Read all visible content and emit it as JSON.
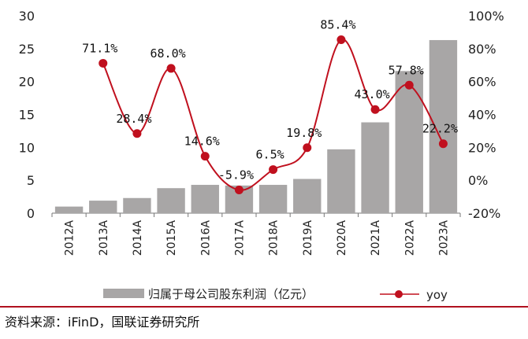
{
  "chart_data": {
    "type": "bar+line",
    "categories": [
      "2012A",
      "2013A",
      "2014A",
      "2015A",
      "2016A",
      "2017A",
      "2018A",
      "2019A",
      "2020A",
      "2021A",
      "2022A",
      "2023A"
    ],
    "series": [
      {
        "name": "归属于母公司股东利润（亿元）",
        "type": "bar",
        "axis": "left",
        "color": "#a8a6a6",
        "values": [
          1.0,
          1.9,
          2.3,
          3.8,
          4.3,
          4.2,
          4.3,
          5.2,
          9.7,
          13.8,
          21.6,
          26.3
        ]
      },
      {
        "name": "yoy",
        "type": "line",
        "axis": "right",
        "color": "#c0101e",
        "values": [
          null,
          71.1,
          28.4,
          68.0,
          14.6,
          -5.9,
          6.5,
          19.8,
          85.4,
          43.0,
          57.8,
          22.2
        ],
        "labels": [
          "",
          "71.1%",
          "28.4%",
          "68.0%",
          "14.6%",
          "-5.9%",
          "6.5%",
          "19.8%",
          "85.4%",
          "43.0%",
          "57.8%",
          "22.2%"
        ]
      }
    ],
    "y_left": {
      "ylim": [
        0,
        30
      ],
      "ticks": [
        0,
        5,
        10,
        15,
        20,
        25,
        30
      ],
      "tick_labels": [
        "0",
        "5",
        "10",
        "15",
        "20",
        "25",
        "30"
      ]
    },
    "y_right": {
      "ylim": [
        -20,
        100
      ],
      "ticks": [
        -20,
        0,
        20,
        40,
        60,
        80,
        100
      ],
      "tick_labels": [
        "-20%",
        "0%",
        "20%",
        "40%",
        "60%",
        "80%",
        "100%"
      ]
    },
    "grid": false,
    "legend_position": "bottom"
  },
  "source": "资料来源：iFinD，国联证券研究所"
}
